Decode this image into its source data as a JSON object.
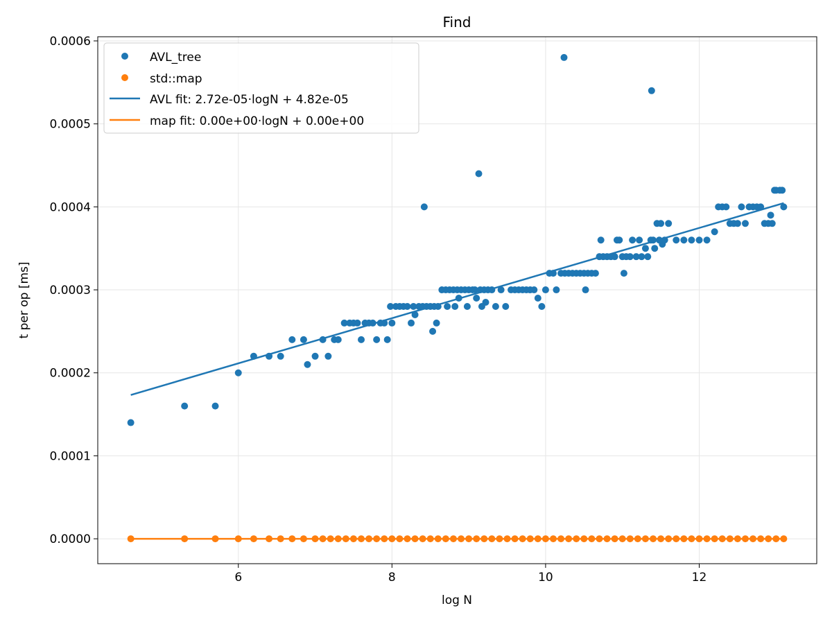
{
  "chart_data": {
    "type": "scatter",
    "title": "Find",
    "xlabel": "log N",
    "ylabel": "t per op [ms]",
    "xlim": [
      4.17,
      13.53
    ],
    "ylim": [
      -3e-05,
      0.000605
    ],
    "xticks": [
      6,
      8,
      10,
      12
    ],
    "yticks": [
      0,
      0.0001,
      0.0002,
      0.0003,
      0.0004,
      0.0005,
      0.0006
    ],
    "ytick_labels": [
      "0.0000",
      "0.0001",
      "0.0002",
      "0.0003",
      "0.0004",
      "0.0005",
      "0.0006"
    ],
    "xtick_labels": [
      "6",
      "8",
      "10",
      "12"
    ],
    "grid": true,
    "legend_position": "top-left",
    "series": [
      {
        "name": "AVL_tree",
        "kind": "scatter",
        "color": "#1f77b4",
        "points": [
          [
            4.6,
            0.00014
          ],
          [
            5.3,
            0.00016
          ],
          [
            5.7,
            0.00016
          ],
          [
            6.0,
            0.0002
          ],
          [
            6.2,
            0.00022
          ],
          [
            6.4,
            0.00022
          ],
          [
            6.55,
            0.00022
          ],
          [
            6.7,
            0.00024
          ],
          [
            6.85,
            0.00024
          ],
          [
            6.9,
            0.00021
          ],
          [
            7.0,
            0.00022
          ],
          [
            7.1,
            0.00024
          ],
          [
            7.17,
            0.00022
          ],
          [
            7.25,
            0.00024
          ],
          [
            7.3,
            0.00024
          ],
          [
            7.38,
            0.00026
          ],
          [
            7.45,
            0.00026
          ],
          [
            7.5,
            0.00026
          ],
          [
            7.55,
            0.00026
          ],
          [
            7.6,
            0.00024
          ],
          [
            7.65,
            0.00026
          ],
          [
            7.7,
            0.00026
          ],
          [
            7.75,
            0.00026
          ],
          [
            7.8,
            0.00024
          ],
          [
            7.85,
            0.00026
          ],
          [
            7.9,
            0.00026
          ],
          [
            7.94,
            0.00024
          ],
          [
            7.98,
            0.00028
          ],
          [
            8.0,
            0.00026
          ],
          [
            8.05,
            0.00028
          ],
          [
            8.1,
            0.00028
          ],
          [
            8.15,
            0.00028
          ],
          [
            8.2,
            0.00028
          ],
          [
            8.25,
            0.00026
          ],
          [
            8.28,
            0.00028
          ],
          [
            8.3,
            0.00027
          ],
          [
            8.35,
            0.00028
          ],
          [
            8.4,
            0.00028
          ],
          [
            8.42,
            0.0004
          ],
          [
            8.45,
            0.00028
          ],
          [
            8.5,
            0.00028
          ],
          [
            8.53,
            0.00025
          ],
          [
            8.55,
            0.00028
          ],
          [
            8.58,
            0.00026
          ],
          [
            8.6,
            0.00028
          ],
          [
            8.65,
            0.0003
          ],
          [
            8.7,
            0.0003
          ],
          [
            8.72,
            0.00028
          ],
          [
            8.75,
            0.0003
          ],
          [
            8.8,
            0.0003
          ],
          [
            8.82,
            0.00028
          ],
          [
            8.85,
            0.0003
          ],
          [
            8.87,
            0.00029
          ],
          [
            8.9,
            0.0003
          ],
          [
            8.95,
            0.0003
          ],
          [
            8.98,
            0.00028
          ],
          [
            9.0,
            0.0003
          ],
          [
            9.05,
            0.0003
          ],
          [
            9.08,
            0.0003
          ],
          [
            9.1,
            0.00029
          ],
          [
            9.13,
            0.00044
          ],
          [
            9.15,
            0.0003
          ],
          [
            9.17,
            0.00028
          ],
          [
            9.2,
            0.0003
          ],
          [
            9.22,
            0.000285
          ],
          [
            9.25,
            0.0003
          ],
          [
            9.3,
            0.0003
          ],
          [
            9.35,
            0.00028
          ],
          [
            9.42,
            0.0003
          ],
          [
            9.48,
            0.00028
          ],
          [
            9.55,
            0.0003
          ],
          [
            9.6,
            0.0003
          ],
          [
            9.65,
            0.0003
          ],
          [
            9.7,
            0.0003
          ],
          [
            9.75,
            0.0003
          ],
          [
            9.8,
            0.0003
          ],
          [
            9.85,
            0.0003
          ],
          [
            9.9,
            0.00029
          ],
          [
            9.95,
            0.00028
          ],
          [
            10.0,
            0.0003
          ],
          [
            10.05,
            0.00032
          ],
          [
            10.1,
            0.00032
          ],
          [
            10.14,
            0.0003
          ],
          [
            10.2,
            0.00032
          ],
          [
            10.25,
            0.00032
          ],
          [
            10.24,
            0.00058
          ],
          [
            10.3,
            0.00032
          ],
          [
            10.35,
            0.00032
          ],
          [
            10.4,
            0.00032
          ],
          [
            10.45,
            0.00032
          ],
          [
            10.5,
            0.00032
          ],
          [
            10.52,
            0.0003
          ],
          [
            10.55,
            0.00032
          ],
          [
            10.6,
            0.00032
          ],
          [
            10.65,
            0.00032
          ],
          [
            10.7,
            0.00034
          ],
          [
            10.72,
            0.00036
          ],
          [
            10.75,
            0.00034
          ],
          [
            10.8,
            0.00034
          ],
          [
            10.85,
            0.00034
          ],
          [
            10.9,
            0.00034
          ],
          [
            10.93,
            0.00036
          ],
          [
            10.96,
            0.00036
          ],
          [
            11.0,
            0.00034
          ],
          [
            11.02,
            0.00032
          ],
          [
            11.05,
            0.00034
          ],
          [
            11.1,
            0.00034
          ],
          [
            11.13,
            0.00036
          ],
          [
            11.18,
            0.00034
          ],
          [
            11.22,
            0.00036
          ],
          [
            11.25,
            0.00034
          ],
          [
            11.3,
            0.00035
          ],
          [
            11.33,
            0.00034
          ],
          [
            11.37,
            0.00036
          ],
          [
            11.38,
            0.00054
          ],
          [
            11.4,
            0.00036
          ],
          [
            11.42,
            0.00035
          ],
          [
            11.45,
            0.00038
          ],
          [
            11.48,
            0.00036
          ],
          [
            11.5,
            0.00038
          ],
          [
            11.52,
            0.000355
          ],
          [
            11.55,
            0.00036
          ],
          [
            11.6,
            0.00038
          ],
          [
            11.7,
            0.00036
          ],
          [
            11.8,
            0.00036
          ],
          [
            11.9,
            0.00036
          ],
          [
            12.0,
            0.00036
          ],
          [
            12.1,
            0.00036
          ],
          [
            12.2,
            0.00037
          ],
          [
            12.25,
            0.0004
          ],
          [
            12.3,
            0.0004
          ],
          [
            12.35,
            0.0004
          ],
          [
            12.4,
            0.00038
          ],
          [
            12.45,
            0.00038
          ],
          [
            12.5,
            0.00038
          ],
          [
            12.55,
            0.0004
          ],
          [
            12.6,
            0.00038
          ],
          [
            12.65,
            0.0004
          ],
          [
            12.7,
            0.0004
          ],
          [
            12.75,
            0.0004
          ],
          [
            12.8,
            0.0004
          ],
          [
            12.85,
            0.00038
          ],
          [
            12.9,
            0.00038
          ],
          [
            12.93,
            0.00039
          ],
          [
            12.95,
            0.00038
          ],
          [
            12.98,
            0.00042
          ],
          [
            13.0,
            0.00042
          ],
          [
            13.05,
            0.00042
          ],
          [
            13.08,
            0.00042
          ],
          [
            13.1,
            0.0004
          ]
        ]
      },
      {
        "name": "std::map",
        "kind": "scatter",
        "color": "#ff7f0e",
        "x_values": [
          4.6,
          5.3,
          5.7,
          6.0,
          6.2,
          6.4,
          6.55,
          6.7,
          6.85,
          7.0,
          7.1,
          7.2,
          7.3,
          7.4,
          7.5,
          7.6,
          7.7,
          7.8,
          7.9,
          8.0,
          8.1,
          8.2,
          8.3,
          8.4,
          8.5,
          8.6,
          8.7,
          8.8,
          8.9,
          9.0,
          9.1,
          9.2,
          9.3,
          9.4,
          9.5,
          9.6,
          9.7,
          9.8,
          9.9,
          10.0,
          10.1,
          10.2,
          10.3,
          10.4,
          10.5,
          10.6,
          10.7,
          10.8,
          10.9,
          11.0,
          11.1,
          11.2,
          11.3,
          11.4,
          11.5,
          11.6,
          11.7,
          11.8,
          11.9,
          12.0,
          12.1,
          12.2,
          12.3,
          12.4,
          12.5,
          12.6,
          12.7,
          12.8,
          12.9,
          13.0,
          13.1
        ],
        "y_value": 0
      },
      {
        "name": "AVL fit: 2.72e-05·logN + 4.82e-05",
        "kind": "line",
        "color": "#1f77b4",
        "slope": 2.72e-05,
        "intercept": 4.82e-05,
        "x_range": [
          4.6,
          13.1
        ]
      },
      {
        "name": "map fit: 0.00e+00·logN + 0.00e+00",
        "kind": "line",
        "color": "#ff7f0e",
        "slope": 0,
        "intercept": 0,
        "x_range": [
          4.6,
          13.1
        ]
      }
    ]
  }
}
